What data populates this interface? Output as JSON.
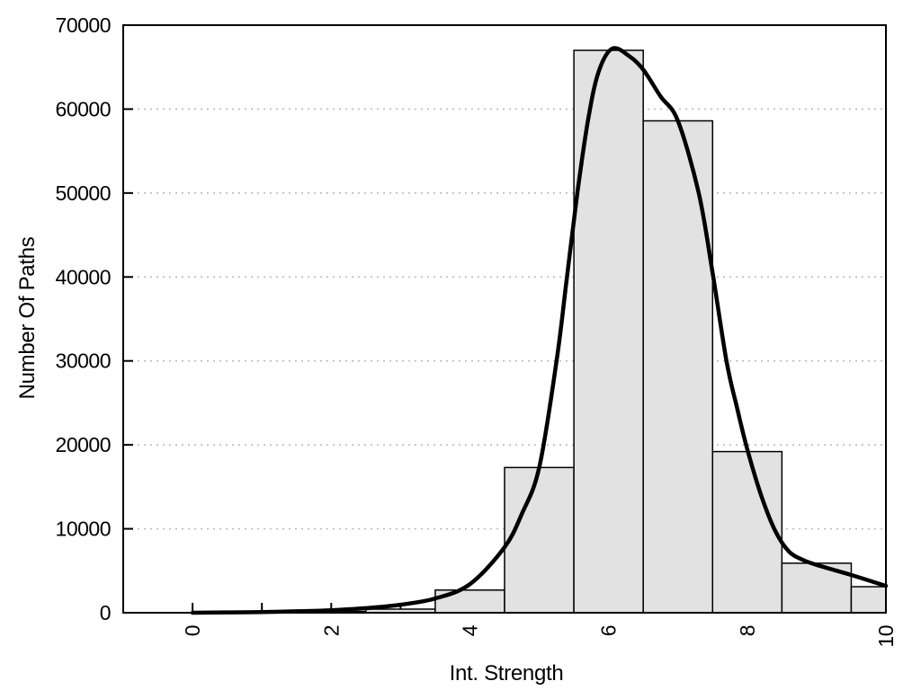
{
  "chart_data": {
    "type": "bar",
    "subtype": "histogram-with-density-curve",
    "title": "",
    "xlabel": "Int. Strength",
    "ylabel": "Number Of Paths",
    "xlim": [
      -1,
      10
    ],
    "ylim": [
      0,
      70000
    ],
    "grid": "horizontal dotted",
    "legend": "none",
    "x_ticks": [
      {
        "v": 0,
        "label": "0"
      },
      {
        "v": 1,
        "label": ""
      },
      {
        "v": 2,
        "label": "2"
      },
      {
        "v": 3,
        "label": ""
      },
      {
        "v": 4,
        "label": "4"
      },
      {
        "v": 5,
        "label": ""
      },
      {
        "v": 6,
        "label": "6"
      },
      {
        "v": 7,
        "label": ""
      },
      {
        "v": 8,
        "label": "8"
      },
      {
        "v": 9,
        "label": ""
      },
      {
        "v": 10,
        "label": "10"
      }
    ],
    "y_ticks": [
      {
        "v": 0,
        "label": "0"
      },
      {
        "v": 10000,
        "label": "10000"
      },
      {
        "v": 20000,
        "label": "20000"
      },
      {
        "v": 30000,
        "label": "30000"
      },
      {
        "v": 40000,
        "label": "40000"
      },
      {
        "v": 50000,
        "label": "50000"
      },
      {
        "v": 60000,
        "label": "60000"
      },
      {
        "v": 70000,
        "label": "70000"
      }
    ],
    "y_grid": [
      10000,
      20000,
      30000,
      40000,
      50000,
      60000
    ],
    "bins": [
      {
        "x0": 0.5,
        "x1": 1.5,
        "count": 30
      },
      {
        "x0": 1.5,
        "x1": 2.5,
        "count": 150
      },
      {
        "x0": 2.5,
        "x1": 3.5,
        "count": 430
      },
      {
        "x0": 3.5,
        "x1": 4.5,
        "count": 2700
      },
      {
        "x0": 4.5,
        "x1": 5.5,
        "count": 17300
      },
      {
        "x0": 5.5,
        "x1": 6.5,
        "count": 67000
      },
      {
        "x0": 6.5,
        "x1": 7.5,
        "count": 58600
      },
      {
        "x0": 7.5,
        "x1": 8.5,
        "count": 19200
      },
      {
        "x0": 8.5,
        "x1": 9.5,
        "count": 5900
      },
      {
        "x0": 9.5,
        "x1": 10.0,
        "count": 3100
      }
    ],
    "curve": [
      [
        0,
        0
      ],
      [
        0.5,
        40
      ],
      [
        1,
        90
      ],
      [
        1.5,
        170
      ],
      [
        2,
        300
      ],
      [
        2.5,
        550
      ],
      [
        3,
        950
      ],
      [
        3.5,
        1700
      ],
      [
        4,
        3400
      ],
      [
        4.5,
        7800
      ],
      [
        4.75,
        11800
      ],
      [
        5,
        17300
      ],
      [
        5.25,
        30000
      ],
      [
        5.4,
        40000
      ],
      [
        5.55,
        50000
      ],
      [
        5.7,
        58500
      ],
      [
        5.85,
        64300
      ],
      [
        6.05,
        67200
      ],
      [
        6.3,
        66300
      ],
      [
        6.5,
        64700
      ],
      [
        6.75,
        61500
      ],
      [
        7,
        58600
      ],
      [
        7.3,
        50000
      ],
      [
        7.5,
        40500
      ],
      [
        7.7,
        30000
      ],
      [
        7.85,
        24500
      ],
      [
        8,
        19500
      ],
      [
        8.2,
        14000
      ],
      [
        8.4,
        9800
      ],
      [
        8.6,
        7300
      ],
      [
        8.8,
        6300
      ],
      [
        9,
        5700
      ],
      [
        9.25,
        5100
      ],
      [
        9.5,
        4500
      ],
      [
        9.75,
        3850
      ],
      [
        10,
        3200
      ]
    ],
    "colors": {
      "background": "#ffffff",
      "bar_fill": "#e2e2e2",
      "bar_border": "#000000",
      "curve": "#000000",
      "grid": "#bbbbbb",
      "frame": "#000000",
      "text": "#000000"
    }
  }
}
